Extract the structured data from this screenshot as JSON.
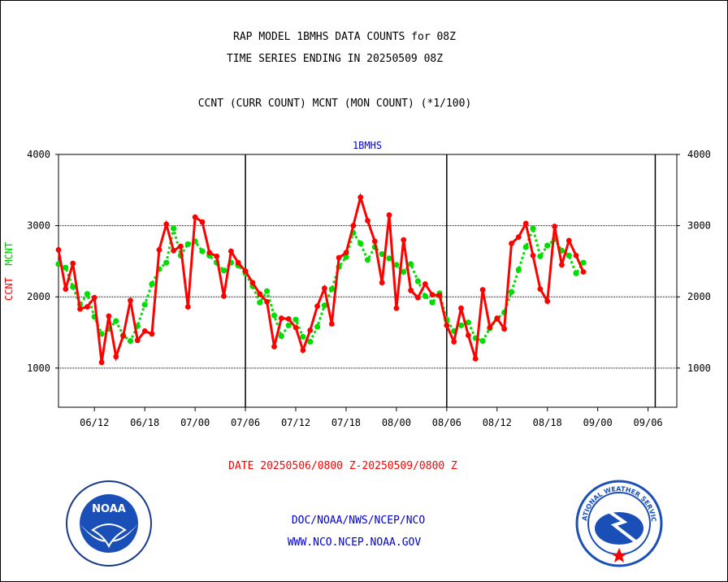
{
  "header": {
    "title_line1": "RAP MODEL 1BMHS DATA COUNTS for 08Z",
    "title_line2": "TIME SERIES ENDING IN 20250509 08Z",
    "subtitle": "CCNT (CURR COUNT) MCNT (MON COUNT) (*1/100)"
  },
  "footer": {
    "date_range": "DATE 20250506/0800 Z-20250509/0800 Z",
    "org_path": "DOC/NOAA/NWS/NCEP/NCO",
    "website": "WWW.NCO.NCEP.NOAA.GOV",
    "noaa_logo_text": "NOAA",
    "nws_logo_text": "NATIONAL WEATHER SERVICE"
  },
  "chart_data": {
    "type": "line",
    "title": "1BMHS",
    "ylabel_ccnt": "CCNT",
    "ylabel_mcnt": "MCNT",
    "ylim": [
      450,
      4000
    ],
    "yticks": [
      1000,
      2000,
      3000,
      4000
    ],
    "xlim": [
      0,
      86
    ],
    "xtick_labels": [
      "06/12",
      "06/18",
      "07/00",
      "07/06",
      "07/12",
      "07/18",
      "08/00",
      "08/06",
      "08/12",
      "08/18",
      "09/00",
      "09/06"
    ],
    "xtick_values": [
      5,
      12,
      19,
      26,
      33,
      40,
      47,
      54,
      61,
      68,
      75,
      82
    ],
    "day_dividers": [
      26,
      54,
      83
    ],
    "series": [
      {
        "name": "CCNT",
        "color": "#ff0000",
        "values": [
          2660,
          2110,
          2470,
          1830,
          1860,
          1990,
          1080,
          1730,
          1160,
          1450,
          1950,
          1390,
          1520,
          1480,
          2660,
          3020,
          2650,
          2710,
          1860,
          3120,
          3050,
          2620,
          2570,
          2010,
          2640,
          2480,
          2360,
          2200,
          2040,
          1930,
          1300,
          1700,
          1690,
          1570,
          1250,
          1530,
          1870,
          2120,
          1620,
          2550,
          2620,
          3000,
          3400,
          3070,
          2780,
          2200,
          3150,
          1840,
          2800,
          2090,
          1990,
          2180,
          2030,
          2020,
          1600,
          1370,
          1840,
          1460,
          1130,
          2100,
          1570,
          1700,
          1550,
          2750,
          2840,
          3030,
          2580,
          2110,
          1940,
          2990,
          2450,
          2790,
          2580,
          2350
        ]
      },
      {
        "name": "MCNT",
        "color": "#00dd00",
        "values": [
          2460,
          2410,
          2140,
          1890,
          2040,
          1720,
          1480,
          1550,
          1660,
          1460,
          1380,
          1590,
          1890,
          2180,
          2390,
          2480,
          2960,
          2580,
          2740,
          2780,
          2640,
          2580,
          2480,
          2370,
          2480,
          2440,
          2330,
          2150,
          1920,
          2080,
          1740,
          1450,
          1600,
          1680,
          1440,
          1370,
          1580,
          1880,
          2110,
          2420,
          2560,
          2900,
          2750,
          2520,
          2700,
          2600,
          2540,
          2450,
          2350,
          2460,
          2220,
          2010,
          1920,
          2050,
          1680,
          1520,
          1600,
          1640,
          1420,
          1380,
          1560,
          1690,
          1780,
          2070,
          2380,
          2700,
          2960,
          2570,
          2720,
          2810,
          2650,
          2580,
          2330,
          2480
        ]
      }
    ]
  }
}
